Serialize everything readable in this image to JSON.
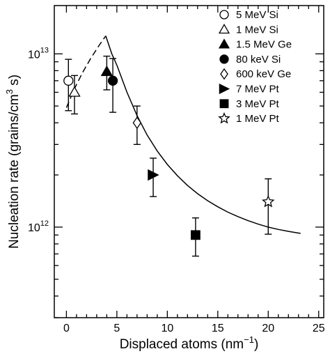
{
  "chart_data": {
    "type": "scatter",
    "title": "",
    "xlabel": {
      "text": "Displaced atoms (nm",
      "sup": "−1",
      "tail": ")"
    },
    "ylabel": {
      "text": "Nucleation rate (grains/cm",
      "sup": "3",
      "tail": " s)"
    },
    "xlim": [
      -1.2,
      25.5
    ],
    "ylim": [
      300000000000.0,
      19000000000000.0
    ],
    "y_scale": "log",
    "x_ticks": [
      0,
      5,
      10,
      15,
      20,
      25
    ],
    "x_tick_labels": [
      "0",
      "5",
      "10",
      "15",
      "20",
      "25"
    ],
    "y_major_ticks": [
      {
        "value": 1000000000000.0,
        "base": "10",
        "exp": "12"
      },
      {
        "value": 10000000000000.0,
        "base": "10",
        "exp": "13"
      }
    ],
    "legend_position": "top-right",
    "series": [
      {
        "name": "5 MeV Si",
        "marker": "circle-open",
        "x": 0.2,
        "y": 7000000000000.0,
        "yerr_low": 4700000000000.0,
        "yerr_high": 9300000000000.0
      },
      {
        "name": "1 MeV Si",
        "marker": "triangle-open",
        "x": 0.8,
        "y": 6000000000000.0,
        "yerr_low": 4500000000000.0,
        "yerr_high": 7500000000000.0
      },
      {
        "name": "1.5 MeV Ge",
        "marker": "triangle-filled",
        "x": 4.0,
        "y": 7900000000000.0,
        "yerr_low": 6200000000000.0,
        "yerr_high": 9700000000000.0
      },
      {
        "name": "80 keV Si",
        "marker": "circle-filled",
        "x": 4.6,
        "y": 7000000000000.0,
        "yerr_low": 4600000000000.0,
        "yerr_high": 9400000000000.0
      },
      {
        "name": "600 keV Ge",
        "marker": "diamond-open",
        "x": 7.0,
        "y": 4000000000000.0,
        "yerr_low": 3000000000000.0,
        "yerr_high": 5000000000000.0
      },
      {
        "name": "7 MeV Pt",
        "marker": "triangle-right-filled",
        "x": 8.6,
        "y": 2000000000000.0,
        "yerr_low": 1500000000000.0,
        "yerr_high": 2500000000000.0
      },
      {
        "name": "3 MeV Pt",
        "marker": "square-filled",
        "x": 12.8,
        "y": 900000000000.0,
        "yerr_low": 680000000000.0,
        "yerr_high": 1130000000000.0
      },
      {
        "name": "1 MeV Pt",
        "marker": "star-open",
        "x": 20.0,
        "y": 1400000000000.0,
        "yerr_low": 910000000000.0,
        "yerr_high": 1900000000000.0
      }
    ],
    "curves": [
      {
        "style": "dashed",
        "x": [
          0.0,
          0.8,
          1.6,
          2.4,
          3.2,
          3.9
        ],
        "y": [
          4900000000000.0,
          6300000000000.0,
          7800000000000.0,
          9400000000000.0,
          11100000000000.0,
          12700000000000.0
        ]
      },
      {
        "style": "solid",
        "x": [
          3.9,
          4.5,
          5,
          6,
          7,
          8,
          9,
          10,
          11,
          12,
          13,
          14,
          15,
          16,
          17,
          18,
          19,
          20,
          21,
          22,
          23.2
        ],
        "y": [
          12700000000000.0,
          10000000000000.0,
          8600000000000.0,
          6000000000000.0,
          4400000000000.0,
          3400000000000.0,
          2750000000000.0,
          2300000000000.0,
          1980000000000.0,
          1740000000000.0,
          1560000000000.0,
          1420000000000.0,
          1310000000000.0,
          1220000000000.0,
          1150000000000.0,
          1090000000000.0,
          1040000000000.0,
          1000000000000.0,
          970000000000.0,
          945000000000.0,
          920000000000.0
        ]
      }
    ]
  }
}
